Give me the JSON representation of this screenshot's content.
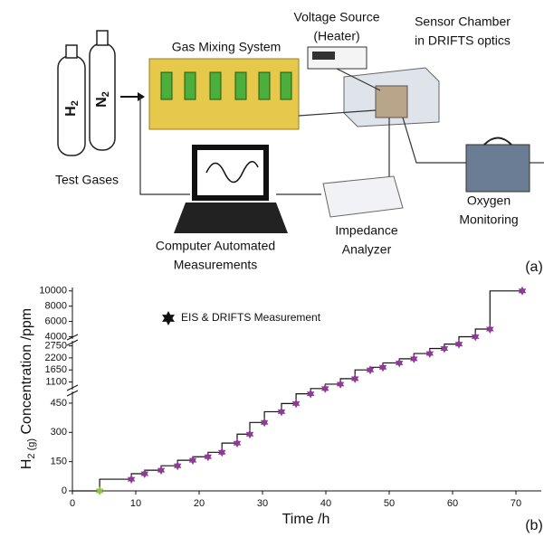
{
  "diagram": {
    "panel_label": "(a)",
    "labels": {
      "voltage_source": [
        "Voltage Source",
        "(Heater)"
      ],
      "sensor_chamber": [
        "Sensor Chamber",
        "in DRIFTS optics"
      ],
      "gas_mixing": [
        "Gas Mixing System"
      ],
      "test_gases": [
        "Test Gases"
      ],
      "computer": [
        "Computer Automated",
        "Measurements"
      ],
      "impedance": [
        "Impedance",
        "Analyzer"
      ],
      "oxygen": [
        "Oxygen",
        "Monitoring"
      ]
    },
    "cylinders": [
      {
        "base": "H",
        "sub": "2"
      },
      {
        "base": "N",
        "sub": "2"
      }
    ]
  },
  "chart_data": {
    "type": "step",
    "panel_label": "(b)",
    "x_label": "Time /h",
    "y_label": {
      "base": "H",
      "sub": "2 (g)",
      "rest": " Concentration /ppm"
    },
    "legend": {
      "label": "EIS & DRIFTS Measurement",
      "color": "#111111"
    },
    "series": [
      {
        "name": "EIS & DRIFTS Measurement",
        "color": "#8e3a96",
        "point_colors": [
          "#8dc63f",
          "#8e3a96",
          "#8e3a96",
          "#8e3a96",
          "#8e3a96",
          "#8e3a96",
          "#8e3a96",
          "#8e3a96",
          "#8e3a96",
          "#8e3a96",
          "#8e3a96",
          "#8e3a96",
          "#8e3a96",
          "#8e3a96",
          "#8e3a96",
          "#8e3a96",
          "#8e3a96",
          "#8e3a96",
          "#8e3a96",
          "#8e3a96",
          "#8e3a96",
          "#8e3a96",
          "#8e3a96",
          "#8e3a96",
          "#8e3a96",
          "#8e3a96",
          "#8e3a96"
        ],
        "x": [
          4.3,
          9.3,
          11.4,
          14,
          16.6,
          19,
          21.4,
          23.6,
          26,
          28,
          30.3,
          33,
          35.3,
          37.6,
          39.9,
          42.3,
          44.6,
          47,
          49,
          51.6,
          53.9,
          56.4,
          58.7,
          61,
          63.6,
          65.9,
          71
        ],
        "values": [
          0,
          60,
          88,
          106,
          129,
          157,
          175,
          198,
          245,
          291,
          351,
          406,
          448,
          498,
          800,
          1000,
          1250,
          1650,
          1770,
          1970,
          2160,
          2400,
          2630,
          2830,
          4000,
          5000,
          10000
        ]
      }
    ],
    "xlim": [
      0,
      74
    ],
    "xticks": [
      0,
      10,
      20,
      30,
      40,
      50,
      60,
      70
    ],
    "y_segments": [
      {
        "ylim": [
          0,
          510
        ],
        "yticks": [
          0,
          150,
          300,
          450
        ]
      },
      {
        "ylim": [
          750,
          2980
        ],
        "yticks": [
          1100,
          1650,
          2200,
          2750
        ]
      },
      {
        "ylim": [
          3700,
          10450
        ],
        "yticks": [
          4000,
          6000,
          8000,
          10000
        ]
      }
    ]
  }
}
